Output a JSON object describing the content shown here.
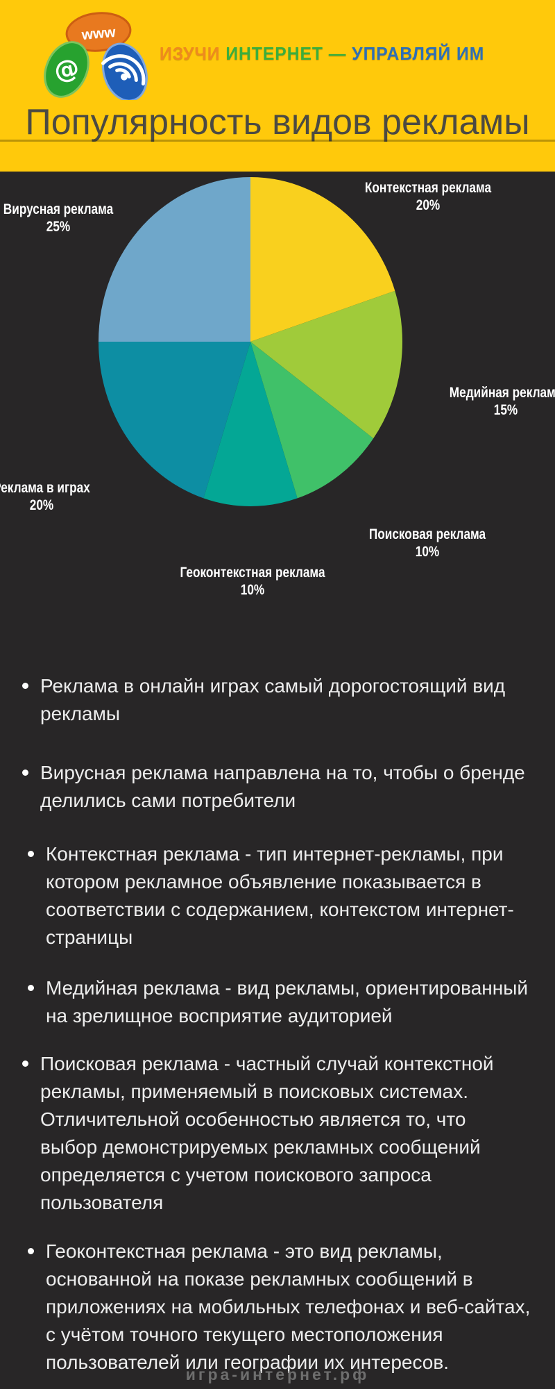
{
  "header": {
    "background_color": "#FFC90B",
    "logo": {
      "www_label": "www",
      "at_symbol": "@",
      "brand_part1": "ИЗУЧИ",
      "brand_part2": "ИНТЕРНЕТ",
      "brand_dash": "—",
      "brand_part3": "УПРАВЛЯЙ ИМ",
      "brand_colors": {
        "part1": "#EE8A1E",
        "part2": "#3BAE3C",
        "part3": "#2F6FB5"
      }
    },
    "title": "Популярность видов рекламы",
    "title_color": "#4C4A42"
  },
  "chart_data": {
    "type": "pie",
    "title": "Популярность видов рекламы",
    "direction": "clockwise",
    "start_angle_deg": 0,
    "background": "#282627",
    "label_color": "#FFFFFF",
    "legend_position": "around-slices",
    "slices": [
      {
        "label": "Контекстная реклама",
        "value": 20,
        "unit": "%",
        "color": "#F9D01E"
      },
      {
        "label": "Медийная реклама",
        "value": 15,
        "unit": "%",
        "color": "#A0CB3A"
      },
      {
        "label": "Поисковая реклама",
        "value": 10,
        "unit": "%",
        "color": "#40C169"
      },
      {
        "label": "Геоконтекстная реклама",
        "value": 10,
        "unit": "%",
        "color": "#04A795"
      },
      {
        "label": "Реклама в играх",
        "value": 20,
        "unit": "%",
        "color": "#0D8EA3"
      },
      {
        "label": "Вирусная реклама",
        "value": 25,
        "unit": "%",
        "color": "#6FA7CA"
      }
    ]
  },
  "bullets": [
    {
      "text": "Реклама в онлайн играх самый дорогостоящий  вид\nрекламы"
    },
    {
      "text": "Вирусная реклама направлена на то, чтобы о бренде\nделились сами потребители"
    },
    {
      "text": "Контекстная реклама - тип интернет-рекламы, при\nкотором рекламное объявление показывается в\nсоответствии с содержанием, контекстом интернет-\nстраницы"
    },
    {
      "text": "Медийная реклама - вид рекламы, ориентированный\nна зрелищное восприятие аудиторией"
    },
    {
      "text": "Поисковая реклама - частный случай контекстной\nрекламы, применяемый в поисковых системах.\nОтличительной особенностью является то, что\nвыбор демонстрируемых рекламных сообщений\nопределяется с учетом поискового запроса\nпользователя"
    },
    {
      "text": "Геоконтекстная реклама - это вид рекламы,\nоснованной на показе рекламных сообщений в\nприложениях на мобильных телефонах и веб-сайтах,\nс учётом точного текущего местоположения\nпользователей или географии их интересов."
    }
  ],
  "footer": {
    "site": "игра-интернет.рф"
  }
}
